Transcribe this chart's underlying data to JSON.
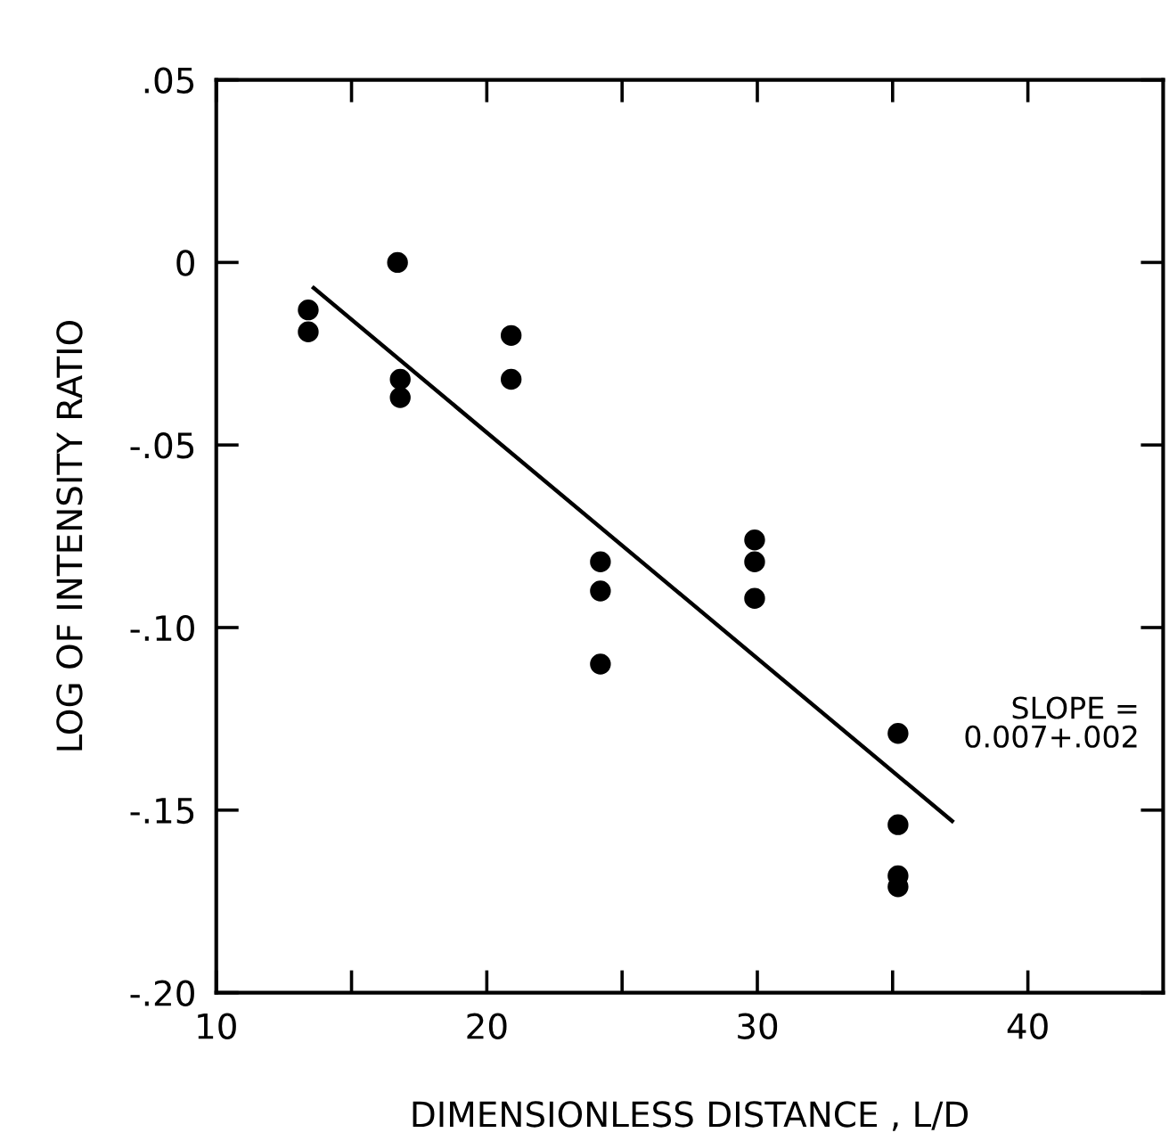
{
  "chart_data": {
    "type": "scatter",
    "xlabel": "DIMENSIONLESS DISTANCE , L/D",
    "ylabel": "LOG OF INTENSITY RATIO",
    "xlim": [
      10,
      45
    ],
    "ylim": [
      -0.2,
      0.05
    ],
    "xticks": [
      10,
      {
        "value": 15,
        "label": null
      },
      20,
      {
        "value": 25,
        "label": null
      },
      30,
      {
        "value": 35,
        "label": null
      },
      40
    ],
    "yticks": [
      {
        "value": 0.05,
        "label": ".05"
      },
      0,
      {
        "value": -0.05,
        "label": "-.05"
      },
      {
        "value": -0.1,
        "label": "-.10"
      },
      {
        "value": -0.15,
        "label": "-.15"
      },
      {
        "value": -0.2,
        "label": "-.20"
      }
    ],
    "grid": false,
    "legend": false,
    "marker": "circle",
    "series": [
      {
        "color": "#000000",
        "x": [
          13.4,
          13.4,
          16.7,
          16.8,
          16.8,
          20.9,
          20.9,
          24.2,
          24.2,
          24.2,
          29.9,
          29.9,
          29.9,
          35.2,
          35.2,
          35.2,
          35.2
        ],
        "values": [
          -0.013,
          -0.019,
          0,
          -0.032,
          -0.037,
          -0.02,
          -0.032,
          -0.082,
          -0.09,
          -0.11,
          -0.076,
          -0.082,
          -0.092,
          -0.129,
          -0.154,
          -0.168,
          -0.171
        ]
      },
      {
        "type": "line",
        "color": "#000000",
        "marker": "none",
        "line_style": "solid",
        "x": [
          13.6,
          37.2
        ],
        "values": [
          -0.007,
          -0.153
        ]
      }
    ],
    "annotations": [
      "SLOPE =\n0.007+.002"
    ]
  }
}
